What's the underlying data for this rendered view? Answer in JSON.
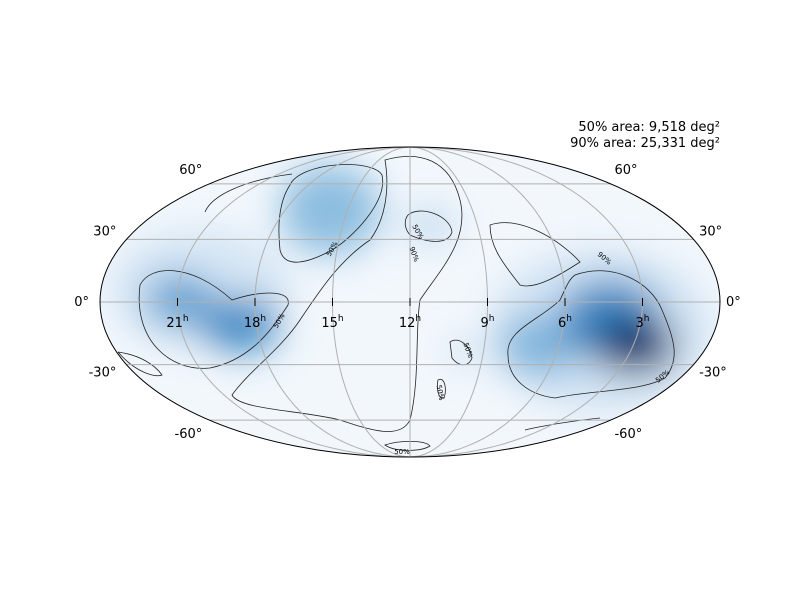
{
  "annotations": [
    "50% area: 9,518 deg²",
    "90% area: 25,331 deg²"
  ],
  "dec_ticks": [
    {
      "value": 60,
      "label": "60°"
    },
    {
      "value": 30,
      "label": "30°"
    },
    {
      "value": 0,
      "label": "0°"
    },
    {
      "value": -30,
      "label": "-30°"
    },
    {
      "value": -60,
      "label": "-60°"
    }
  ],
  "ra_ticks": [
    {
      "value": 21,
      "label": "21",
      "unit": "h"
    },
    {
      "value": 18,
      "label": "18",
      "unit": "h"
    },
    {
      "value": 15,
      "label": "15",
      "unit": "h"
    },
    {
      "value": 12,
      "label": "12",
      "unit": "h"
    },
    {
      "value": 9,
      "label": "9",
      "unit": "h"
    },
    {
      "value": 6,
      "label": "6",
      "unit": "h"
    },
    {
      "value": 3,
      "label": "3",
      "unit": "h"
    }
  ],
  "contour_labels": [
    "50%",
    "90%",
    "50%",
    "50%",
    "90%",
    "50%",
    "50%",
    "50%",
    "50%"
  ]
}
